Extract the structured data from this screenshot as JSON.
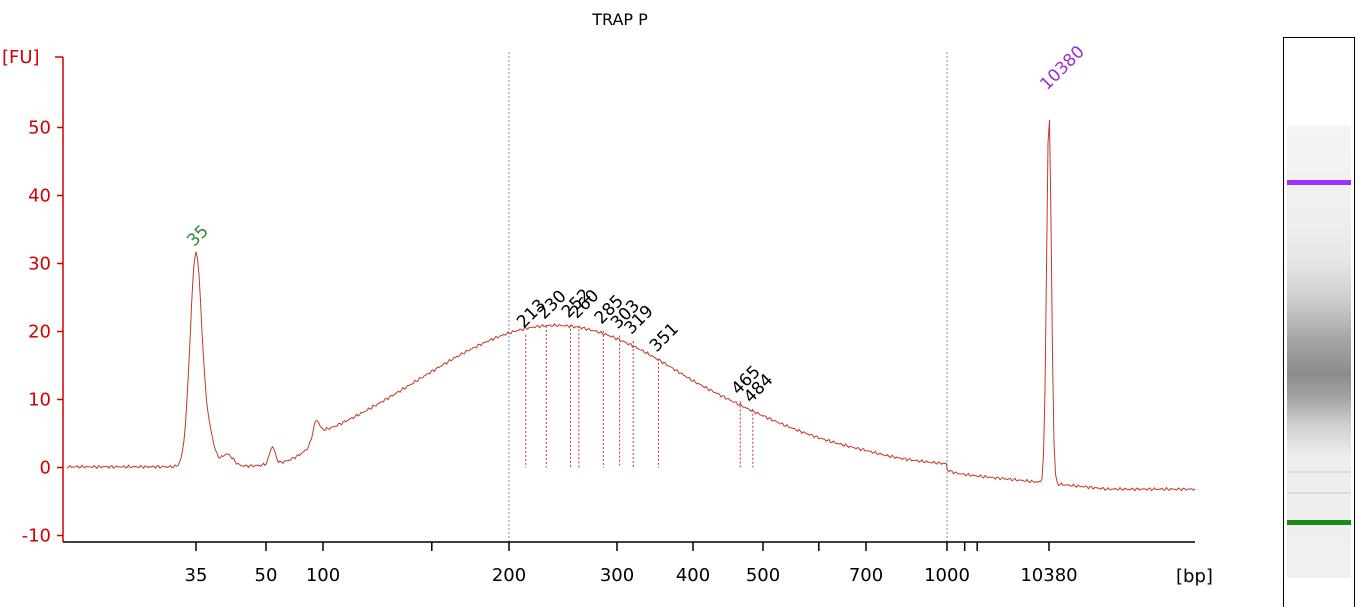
{
  "chart_data": {
    "type": "line",
    "title": "TRAP P",
    "xlabel": "[bp]",
    "ylabel": "[FU]",
    "ylim": [
      -10,
      55
    ],
    "xscale": "log",
    "grid": false,
    "line_color": "#c0392b",
    "axis_color": "#d40000",
    "y_ticks": [
      -10,
      0,
      10,
      20,
      30,
      40,
      50
    ],
    "x_tick_labels": [
      "35",
      "50",
      "100",
      "200",
      "300",
      "400",
      "500",
      "700",
      "1000",
      "10380"
    ],
    "peaks": [
      {
        "size": "35",
        "fu": 31.5,
        "color": "#2e8b2e"
      },
      {
        "size": "213",
        "fu": 19.5,
        "color": "#000000"
      },
      {
        "size": "230",
        "fu": 20.8,
        "color": "#000000"
      },
      {
        "size": "252",
        "fu": 21.0,
        "color": "#000000"
      },
      {
        "size": "260",
        "fu": 20.9,
        "color": "#000000"
      },
      {
        "size": "285",
        "fu": 20.1,
        "color": "#000000"
      },
      {
        "size": "303",
        "fu": 19.4,
        "color": "#000000"
      },
      {
        "size": "319",
        "fu": 18.6,
        "color": "#000000"
      },
      {
        "size": "351",
        "fu": 16.0,
        "color": "#000000"
      },
      {
        "size": "465",
        "fu": 9.7,
        "color": "#000000"
      },
      {
        "size": "484",
        "fu": 8.5,
        "color": "#000000"
      },
      {
        "size": "10380",
        "fu": 54.5,
        "color": "#9b30d0"
      }
    ],
    "markers": [
      "35",
      "10380"
    ],
    "reference_lines_bp": [
      200,
      1000
    ]
  },
  "gel": {
    "upper_marker_color": "#9b30ff",
    "lower_marker_color": "#1a8a1a"
  }
}
